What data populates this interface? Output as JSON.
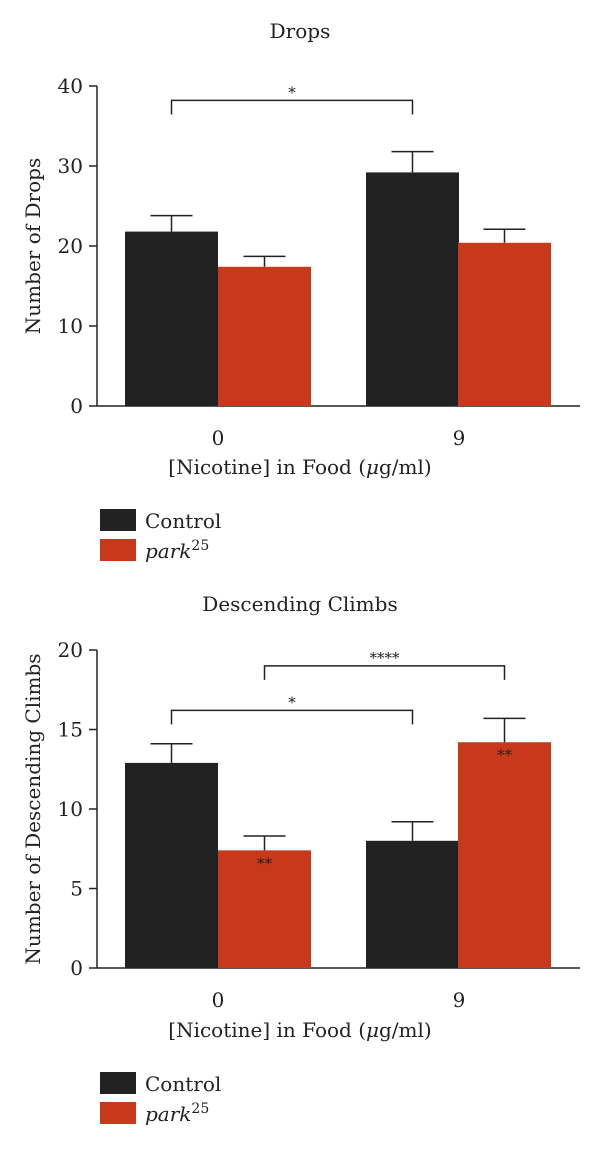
{
  "colors": {
    "control": "#222222",
    "park": "#c8391b",
    "axis": "#222222"
  },
  "legend_items": [
    {
      "label": "Control",
      "color_key": "control",
      "sup": ""
    },
    {
      "label": "park",
      "color_key": "park",
      "sup": "25"
    }
  ],
  "chart_data": [
    {
      "type": "bar",
      "title": "Drops",
      "ylabel": "Number of Drops",
      "xlabel": "[Nicotine] in Food (μg/ml)",
      "categories": [
        "0",
        "9"
      ],
      "ylim": [
        0,
        40
      ],
      "yticks": [
        0,
        10,
        20,
        30,
        40
      ],
      "series": [
        {
          "name": "Control",
          "values": [
            21.8,
            29.2
          ],
          "errors": [
            2.0,
            2.6
          ],
          "marks": [
            "",
            ""
          ]
        },
        {
          "name": "park25",
          "values": [
            17.4,
            20.4
          ],
          "errors": [
            1.3,
            1.7
          ],
          "marks": [
            "",
            ""
          ]
        }
      ],
      "brackets": [
        {
          "from": [
            0,
            0
          ],
          "to": [
            1,
            0
          ],
          "y": 38.2,
          "label": "*"
        }
      ],
      "legend_position": "bottom-left"
    },
    {
      "type": "bar",
      "title": "Descending Climbs",
      "ylabel": "Number of Descending Climbs",
      "xlabel": "[Nicotine] in Food (μg/ml)",
      "categories": [
        "0",
        "9"
      ],
      "ylim": [
        0,
        20
      ],
      "yticks": [
        0,
        5,
        10,
        15,
        20
      ],
      "series": [
        {
          "name": "Control",
          "values": [
            12.9,
            8.0
          ],
          "errors": [
            1.2,
            1.2
          ],
          "marks": [
            "",
            ""
          ]
        },
        {
          "name": "park25",
          "values": [
            7.4,
            14.2
          ],
          "errors": [
            0.9,
            1.5
          ],
          "marks": [
            "**",
            "**"
          ]
        }
      ],
      "brackets": [
        {
          "from": [
            0,
            1
          ],
          "to": [
            1,
            1
          ],
          "y": 19.0,
          "label": "****"
        },
        {
          "from": [
            0,
            0
          ],
          "to": [
            1,
            0
          ],
          "y": 16.2,
          "label": "*"
        }
      ],
      "legend_position": "bottom-left"
    }
  ]
}
